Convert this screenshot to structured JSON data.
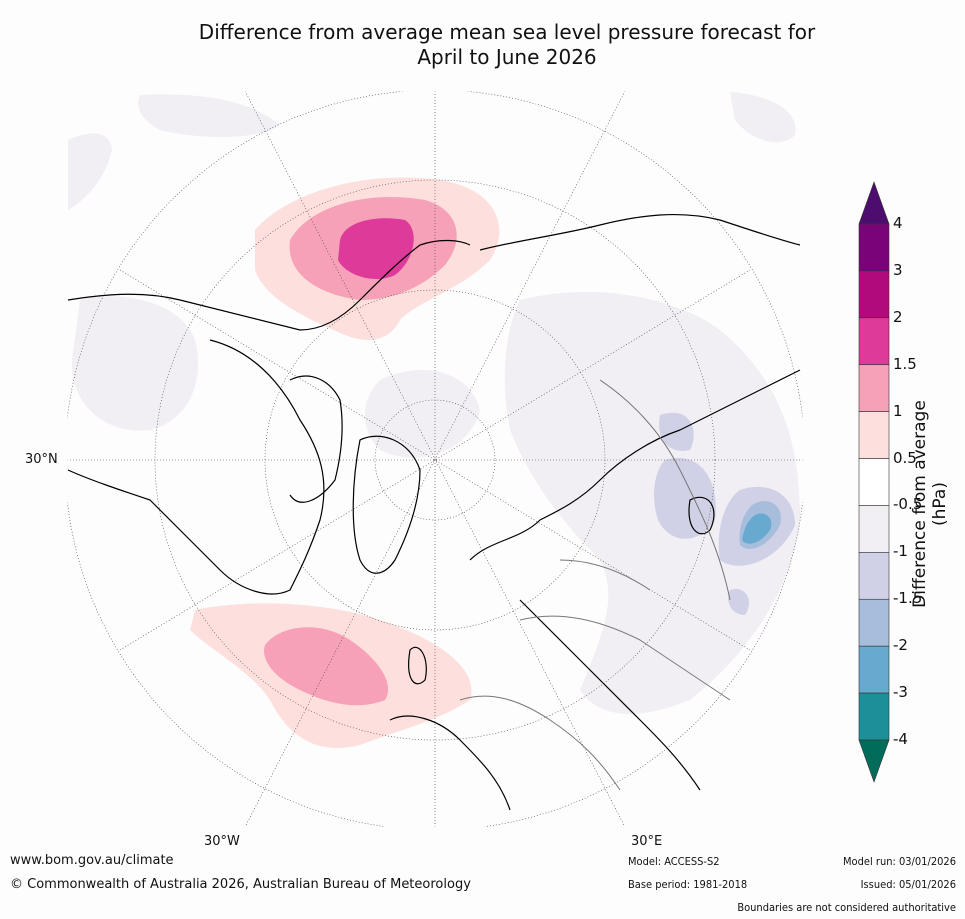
{
  "title": {
    "line1": "Difference from average mean sea level pressure forecast for",
    "line2": "April to June 2026"
  },
  "map": {
    "labels": {
      "lat30": "30°N",
      "lon_w": "30°W",
      "lon_e": "30°E"
    }
  },
  "colorbar": {
    "title": "Difference from average (hPa)",
    "ticks": [
      "4",
      "3",
      "2",
      "1.5",
      "1",
      "0.5",
      "-0.5",
      "-1",
      "-1.5",
      "-2",
      "-3",
      "-4"
    ],
    "colors": [
      "#790479",
      "#b10a7c",
      "#dd3a9a",
      "#f6a1b8",
      "#fde0dd",
      "#ffffff",
      "#f1eef4",
      "#d0d1e6",
      "#a6bddb",
      "#67a9cf",
      "#1c9099"
    ],
    "over_color": "#4d0d6e",
    "under_color": "#016c59"
  },
  "footer": {
    "website": "www.bom.gov.au/climate",
    "copyright": "© Commonwealth of Australia 2026, Australian Bureau of Meteorology",
    "model": "Model: ACCESS-S2",
    "base_period": "Base period: 1981-2018",
    "model_run": "Model run: 03/01/2026",
    "issued": "Issued: 05/01/2026",
    "disclaimer": "Boundaries are not considered authoritative"
  }
}
